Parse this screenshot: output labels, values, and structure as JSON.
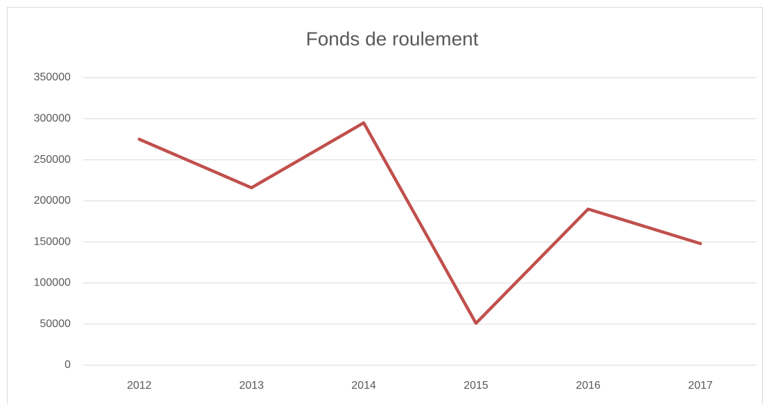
{
  "chart_data": {
    "type": "line",
    "title": "Fonds de roulement",
    "categories": [
      "2012",
      "2013",
      "2014",
      "2015",
      "2016",
      "2017"
    ],
    "series": [
      {
        "name": "Fonds de roulement",
        "color": "#c0504d",
        "values": [
          275000,
          216000,
          295000,
          51000,
          190000,
          148000
        ]
      }
    ],
    "ylim": [
      0,
      350000
    ],
    "yticks": [
      0,
      50000,
      100000,
      150000,
      200000,
      250000,
      300000,
      350000
    ],
    "grid": true
  }
}
